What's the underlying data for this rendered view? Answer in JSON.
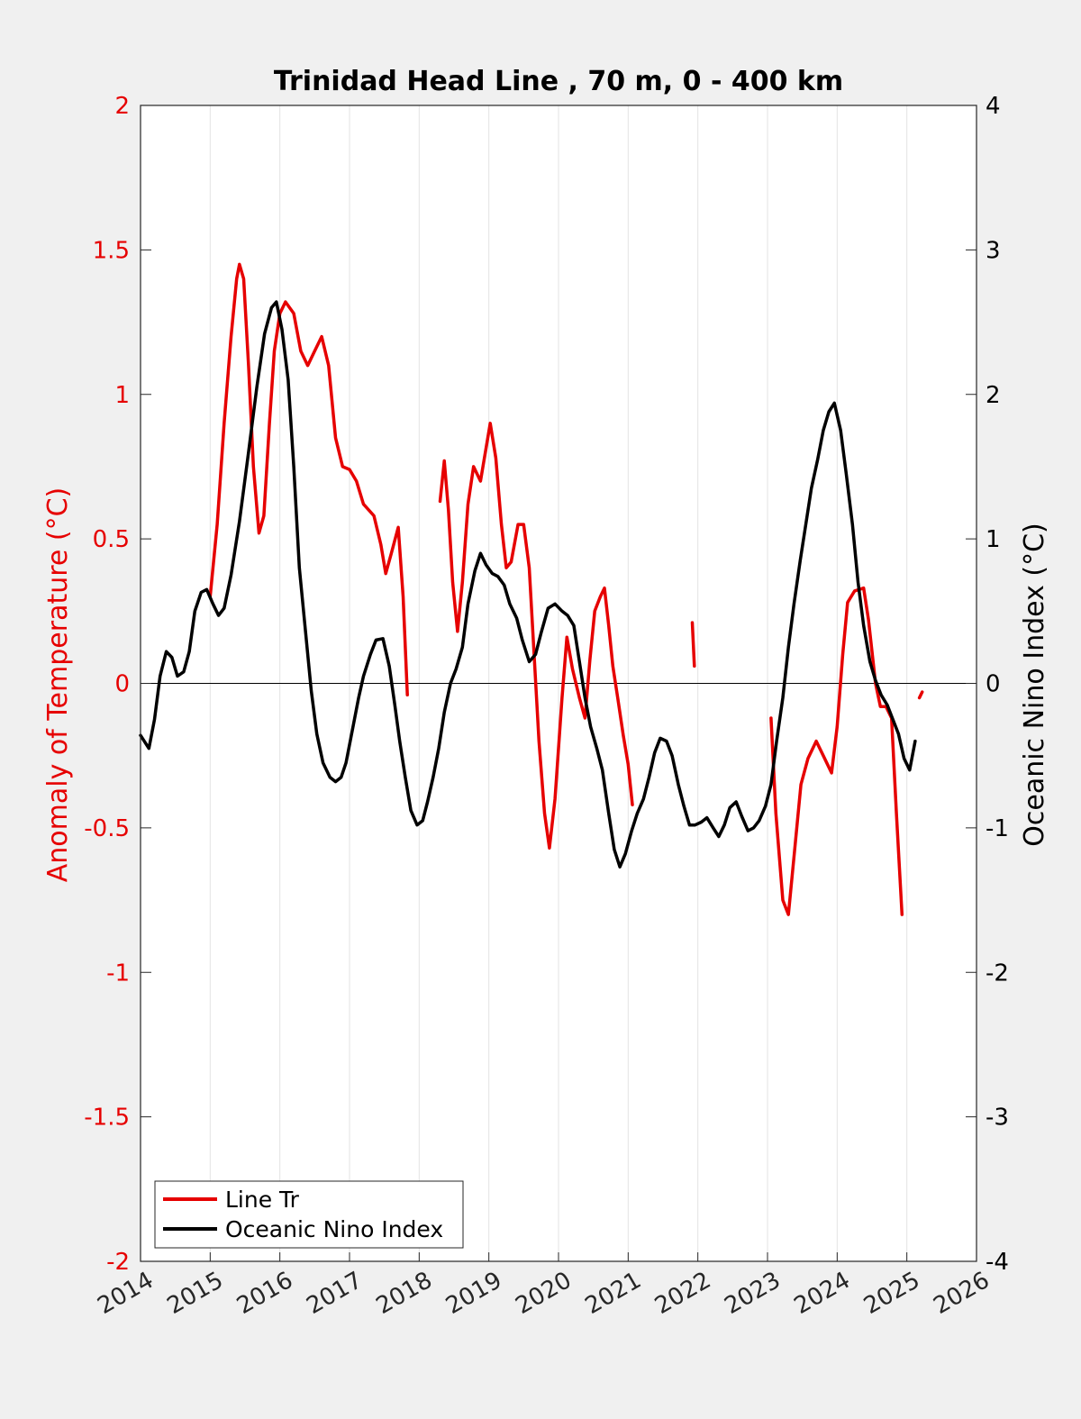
{
  "chart_data": {
    "type": "line",
    "title": "Trinidad Head Line , 70 m, 0 - 400 km",
    "xlabel": "",
    "ylabel_left": "Anomaly of Temperature (°C)",
    "ylabel_right": "Oceanic Nino Index (°C)",
    "xlim": [
      2014,
      2026
    ],
    "ylim_left": [
      -2,
      2
    ],
    "ylim_right": [
      -4,
      4
    ],
    "x_ticks": [
      "2014",
      "2015",
      "2016",
      "2017",
      "2018",
      "2019",
      "2020",
      "2021",
      "2022",
      "2023",
      "2024",
      "2025",
      "2026"
    ],
    "y_ticks_left": [
      "2",
      "1.5",
      "1",
      "0.5",
      "0",
      "-0.5",
      "-1",
      "-1.5",
      "-2"
    ],
    "y_ticks_right": [
      "4",
      "3",
      "2",
      "1",
      "0",
      "-1",
      "-2",
      "-3",
      "-4"
    ],
    "grid": "vertical",
    "legend_position": "bottom-left",
    "colors": {
      "line_tr": "#e60000",
      "oni": "#000000",
      "left_axis": "#e60000",
      "right_axis": "#000000"
    },
    "series": [
      {
        "name": "Line Tr",
        "axis": "left",
        "segments": [
          [
            [
              2015.0,
              0.3
            ],
            [
              2015.1,
              0.55
            ],
            [
              2015.2,
              0.9
            ],
            [
              2015.3,
              1.2
            ],
            [
              2015.38,
              1.4
            ],
            [
              2015.42,
              1.45
            ],
            [
              2015.48,
              1.4
            ],
            [
              2015.55,
              1.1
            ],
            [
              2015.62,
              0.75
            ],
            [
              2015.7,
              0.52
            ],
            [
              2015.77,
              0.58
            ],
            [
              2015.85,
              0.9
            ],
            [
              2015.92,
              1.15
            ],
            [
              2016.0,
              1.28
            ],
            [
              2016.08,
              1.32
            ],
            [
              2016.2,
              1.28
            ],
            [
              2016.3,
              1.15
            ],
            [
              2016.4,
              1.1
            ],
            [
              2016.5,
              1.15
            ],
            [
              2016.6,
              1.2
            ],
            [
              2016.7,
              1.1
            ],
            [
              2016.8,
              0.85
            ],
            [
              2016.9,
              0.75
            ],
            [
              2017.0,
              0.74
            ],
            [
              2017.1,
              0.7
            ],
            [
              2017.2,
              0.62
            ],
            [
              2017.35,
              0.58
            ],
            [
              2017.45,
              0.48
            ],
            [
              2017.52,
              0.38
            ],
            [
              2017.6,
              0.45
            ],
            [
              2017.7,
              0.54
            ],
            [
              2017.77,
              0.3
            ],
            [
              2017.83,
              -0.04
            ]
          ],
          [
            [
              2018.3,
              0.63
            ],
            [
              2018.36,
              0.77
            ],
            [
              2018.42,
              0.6
            ],
            [
              2018.48,
              0.35
            ],
            [
              2018.55,
              0.18
            ],
            [
              2018.62,
              0.35
            ],
            [
              2018.7,
              0.62
            ],
            [
              2018.78,
              0.75
            ],
            [
              2018.88,
              0.7
            ],
            [
              2018.95,
              0.8
            ],
            [
              2019.02,
              0.9
            ],
            [
              2019.1,
              0.78
            ],
            [
              2019.18,
              0.55
            ],
            [
              2019.25,
              0.4
            ],
            [
              2019.32,
              0.42
            ],
            [
              2019.42,
              0.55
            ],
            [
              2019.5,
              0.55
            ],
            [
              2019.58,
              0.4
            ],
            [
              2019.65,
              0.1
            ],
            [
              2019.72,
              -0.2
            ],
            [
              2019.8,
              -0.45
            ],
            [
              2019.87,
              -0.57
            ],
            [
              2019.95,
              -0.4
            ],
            [
              2020.05,
              -0.05
            ],
            [
              2020.12,
              0.16
            ],
            [
              2020.2,
              0.05
            ],
            [
              2020.3,
              -0.05
            ],
            [
              2020.38,
              -0.12
            ],
            [
              2020.45,
              0.08
            ],
            [
              2020.52,
              0.25
            ],
            [
              2020.6,
              0.3
            ],
            [
              2020.66,
              0.33
            ],
            [
              2020.72,
              0.2
            ],
            [
              2020.78,
              0.06
            ],
            [
              2020.85,
              -0.05
            ],
            [
              2020.93,
              -0.18
            ],
            [
              2021.0,
              -0.28
            ],
            [
              2021.06,
              -0.42
            ]
          ],
          [
            [
              2021.92,
              0.21
            ],
            [
              2021.95,
              0.06
            ]
          ],
          [
            [
              2023.05,
              -0.12
            ],
            [
              2023.12,
              -0.45
            ],
            [
              2023.22,
              -0.75
            ],
            [
              2023.3,
              -0.8
            ],
            [
              2023.38,
              -0.6
            ],
            [
              2023.48,
              -0.35
            ],
            [
              2023.58,
              -0.26
            ],
            [
              2023.7,
              -0.2
            ],
            [
              2023.8,
              -0.25
            ],
            [
              2023.92,
              -0.31
            ],
            [
              2024.0,
              -0.15
            ],
            [
              2024.08,
              0.1
            ],
            [
              2024.15,
              0.28
            ],
            [
              2024.25,
              0.32
            ],
            [
              2024.38,
              0.33
            ],
            [
              2024.45,
              0.22
            ],
            [
              2024.55,
              0.0
            ],
            [
              2024.62,
              -0.08
            ],
            [
              2024.7,
              -0.08
            ],
            [
              2024.78,
              -0.12
            ],
            [
              2024.85,
              -0.45
            ],
            [
              2024.93,
              -0.8
            ]
          ],
          [
            [
              2025.18,
              -0.05
            ],
            [
              2025.22,
              -0.03
            ]
          ]
        ]
      },
      {
        "name": "Oceanic Nino Index",
        "axis": "right",
        "segments": [
          [
            [
              2014.0,
              -0.36
            ],
            [
              2014.12,
              -0.45
            ],
            [
              2014.2,
              -0.25
            ],
            [
              2014.28,
              0.05
            ],
            [
              2014.37,
              0.22
            ],
            [
              2014.45,
              0.18
            ],
            [
              2014.53,
              0.05
            ],
            [
              2014.62,
              0.08
            ],
            [
              2014.7,
              0.22
            ],
            [
              2014.78,
              0.5
            ],
            [
              2014.87,
              0.63
            ],
            [
              2014.95,
              0.65
            ],
            [
              2015.04,
              0.55
            ],
            [
              2015.12,
              0.47
            ],
            [
              2015.2,
              0.52
            ],
            [
              2015.3,
              0.75
            ],
            [
              2015.42,
              1.12
            ],
            [
              2015.55,
              1.6
            ],
            [
              2015.67,
              2.05
            ],
            [
              2015.78,
              2.42
            ],
            [
              2015.88,
              2.6
            ],
            [
              2015.95,
              2.64
            ],
            [
              2016.03,
              2.45
            ],
            [
              2016.12,
              2.1
            ],
            [
              2016.2,
              1.5
            ],
            [
              2016.28,
              0.8
            ],
            [
              2016.37,
              0.35
            ],
            [
              2016.45,
              -0.05
            ],
            [
              2016.53,
              -0.35
            ],
            [
              2016.62,
              -0.55
            ],
            [
              2016.72,
              -0.65
            ],
            [
              2016.8,
              -0.68
            ],
            [
              2016.88,
              -0.65
            ],
            [
              2016.95,
              -0.55
            ],
            [
              2017.05,
              -0.3
            ],
            [
              2017.13,
              -0.1
            ],
            [
              2017.2,
              0.05
            ],
            [
              2017.3,
              0.2
            ],
            [
              2017.38,
              0.3
            ],
            [
              2017.48,
              0.31
            ],
            [
              2017.57,
              0.12
            ],
            [
              2017.65,
              -0.15
            ],
            [
              2017.72,
              -0.4
            ],
            [
              2017.8,
              -0.65
            ],
            [
              2017.88,
              -0.88
            ],
            [
              2017.97,
              -0.98
            ],
            [
              2018.05,
              -0.95
            ],
            [
              2018.12,
              -0.82
            ],
            [
              2018.2,
              -0.65
            ],
            [
              2018.28,
              -0.45
            ],
            [
              2018.36,
              -0.2
            ],
            [
              2018.45,
              0.0
            ],
            [
              2018.53,
              0.1
            ],
            [
              2018.62,
              0.25
            ],
            [
              2018.7,
              0.55
            ],
            [
              2018.8,
              0.78
            ],
            [
              2018.88,
              0.9
            ],
            [
              2018.96,
              0.82
            ],
            [
              2019.05,
              0.76
            ],
            [
              2019.13,
              0.74
            ],
            [
              2019.22,
              0.68
            ],
            [
              2019.3,
              0.55
            ],
            [
              2019.4,
              0.45
            ],
            [
              2019.48,
              0.3
            ],
            [
              2019.58,
              0.15
            ],
            [
              2019.67,
              0.2
            ],
            [
              2019.75,
              0.35
            ],
            [
              2019.85,
              0.52
            ],
            [
              2019.95,
              0.55
            ],
            [
              2020.05,
              0.5
            ],
            [
              2020.13,
              0.47
            ],
            [
              2020.22,
              0.4
            ],
            [
              2020.3,
              0.15
            ],
            [
              2020.38,
              -0.1
            ],
            [
              2020.46,
              -0.3
            ],
            [
              2020.55,
              -0.45
            ],
            [
              2020.63,
              -0.6
            ],
            [
              2020.72,
              -0.9
            ],
            [
              2020.8,
              -1.15
            ],
            [
              2020.88,
              -1.27
            ],
            [
              2020.96,
              -1.18
            ],
            [
              2021.05,
              -1.02
            ],
            [
              2021.13,
              -0.9
            ],
            [
              2021.22,
              -0.8
            ],
            [
              2021.3,
              -0.65
            ],
            [
              2021.38,
              -0.48
            ],
            [
              2021.46,
              -0.38
            ],
            [
              2021.55,
              -0.4
            ],
            [
              2021.63,
              -0.5
            ],
            [
              2021.72,
              -0.7
            ],
            [
              2021.8,
              -0.85
            ],
            [
              2021.88,
              -0.98
            ],
            [
              2021.96,
              -0.98
            ],
            [
              2022.05,
              -0.96
            ],
            [
              2022.13,
              -0.93
            ],
            [
              2022.22,
              -1.0
            ],
            [
              2022.3,
              -1.06
            ],
            [
              2022.38,
              -0.98
            ],
            [
              2022.46,
              -0.86
            ],
            [
              2022.55,
              -0.82
            ],
            [
              2022.63,
              -0.92
            ],
            [
              2022.72,
              -1.02
            ],
            [
              2022.8,
              -1.0
            ],
            [
              2022.88,
              -0.95
            ],
            [
              2022.97,
              -0.85
            ],
            [
              2023.05,
              -0.7
            ],
            [
              2023.13,
              -0.4
            ],
            [
              2023.22,
              -0.1
            ],
            [
              2023.3,
              0.25
            ],
            [
              2023.38,
              0.55
            ],
            [
              2023.47,
              0.85
            ],
            [
              2023.55,
              1.1
            ],
            [
              2023.63,
              1.35
            ],
            [
              2023.72,
              1.55
            ],
            [
              2023.8,
              1.75
            ],
            [
              2023.88,
              1.88
            ],
            [
              2023.96,
              1.94
            ],
            [
              2024.05,
              1.75
            ],
            [
              2024.13,
              1.45
            ],
            [
              2024.22,
              1.1
            ],
            [
              2024.3,
              0.7
            ],
            [
              2024.38,
              0.4
            ],
            [
              2024.47,
              0.15
            ],
            [
              2024.55,
              0.02
            ],
            [
              2024.63,
              -0.08
            ],
            [
              2024.72,
              -0.15
            ],
            [
              2024.8,
              -0.25
            ],
            [
              2024.88,
              -0.35
            ],
            [
              2024.96,
              -0.52
            ],
            [
              2025.04,
              -0.6
            ],
            [
              2025.12,
              -0.4
            ]
          ]
        ]
      }
    ]
  }
}
